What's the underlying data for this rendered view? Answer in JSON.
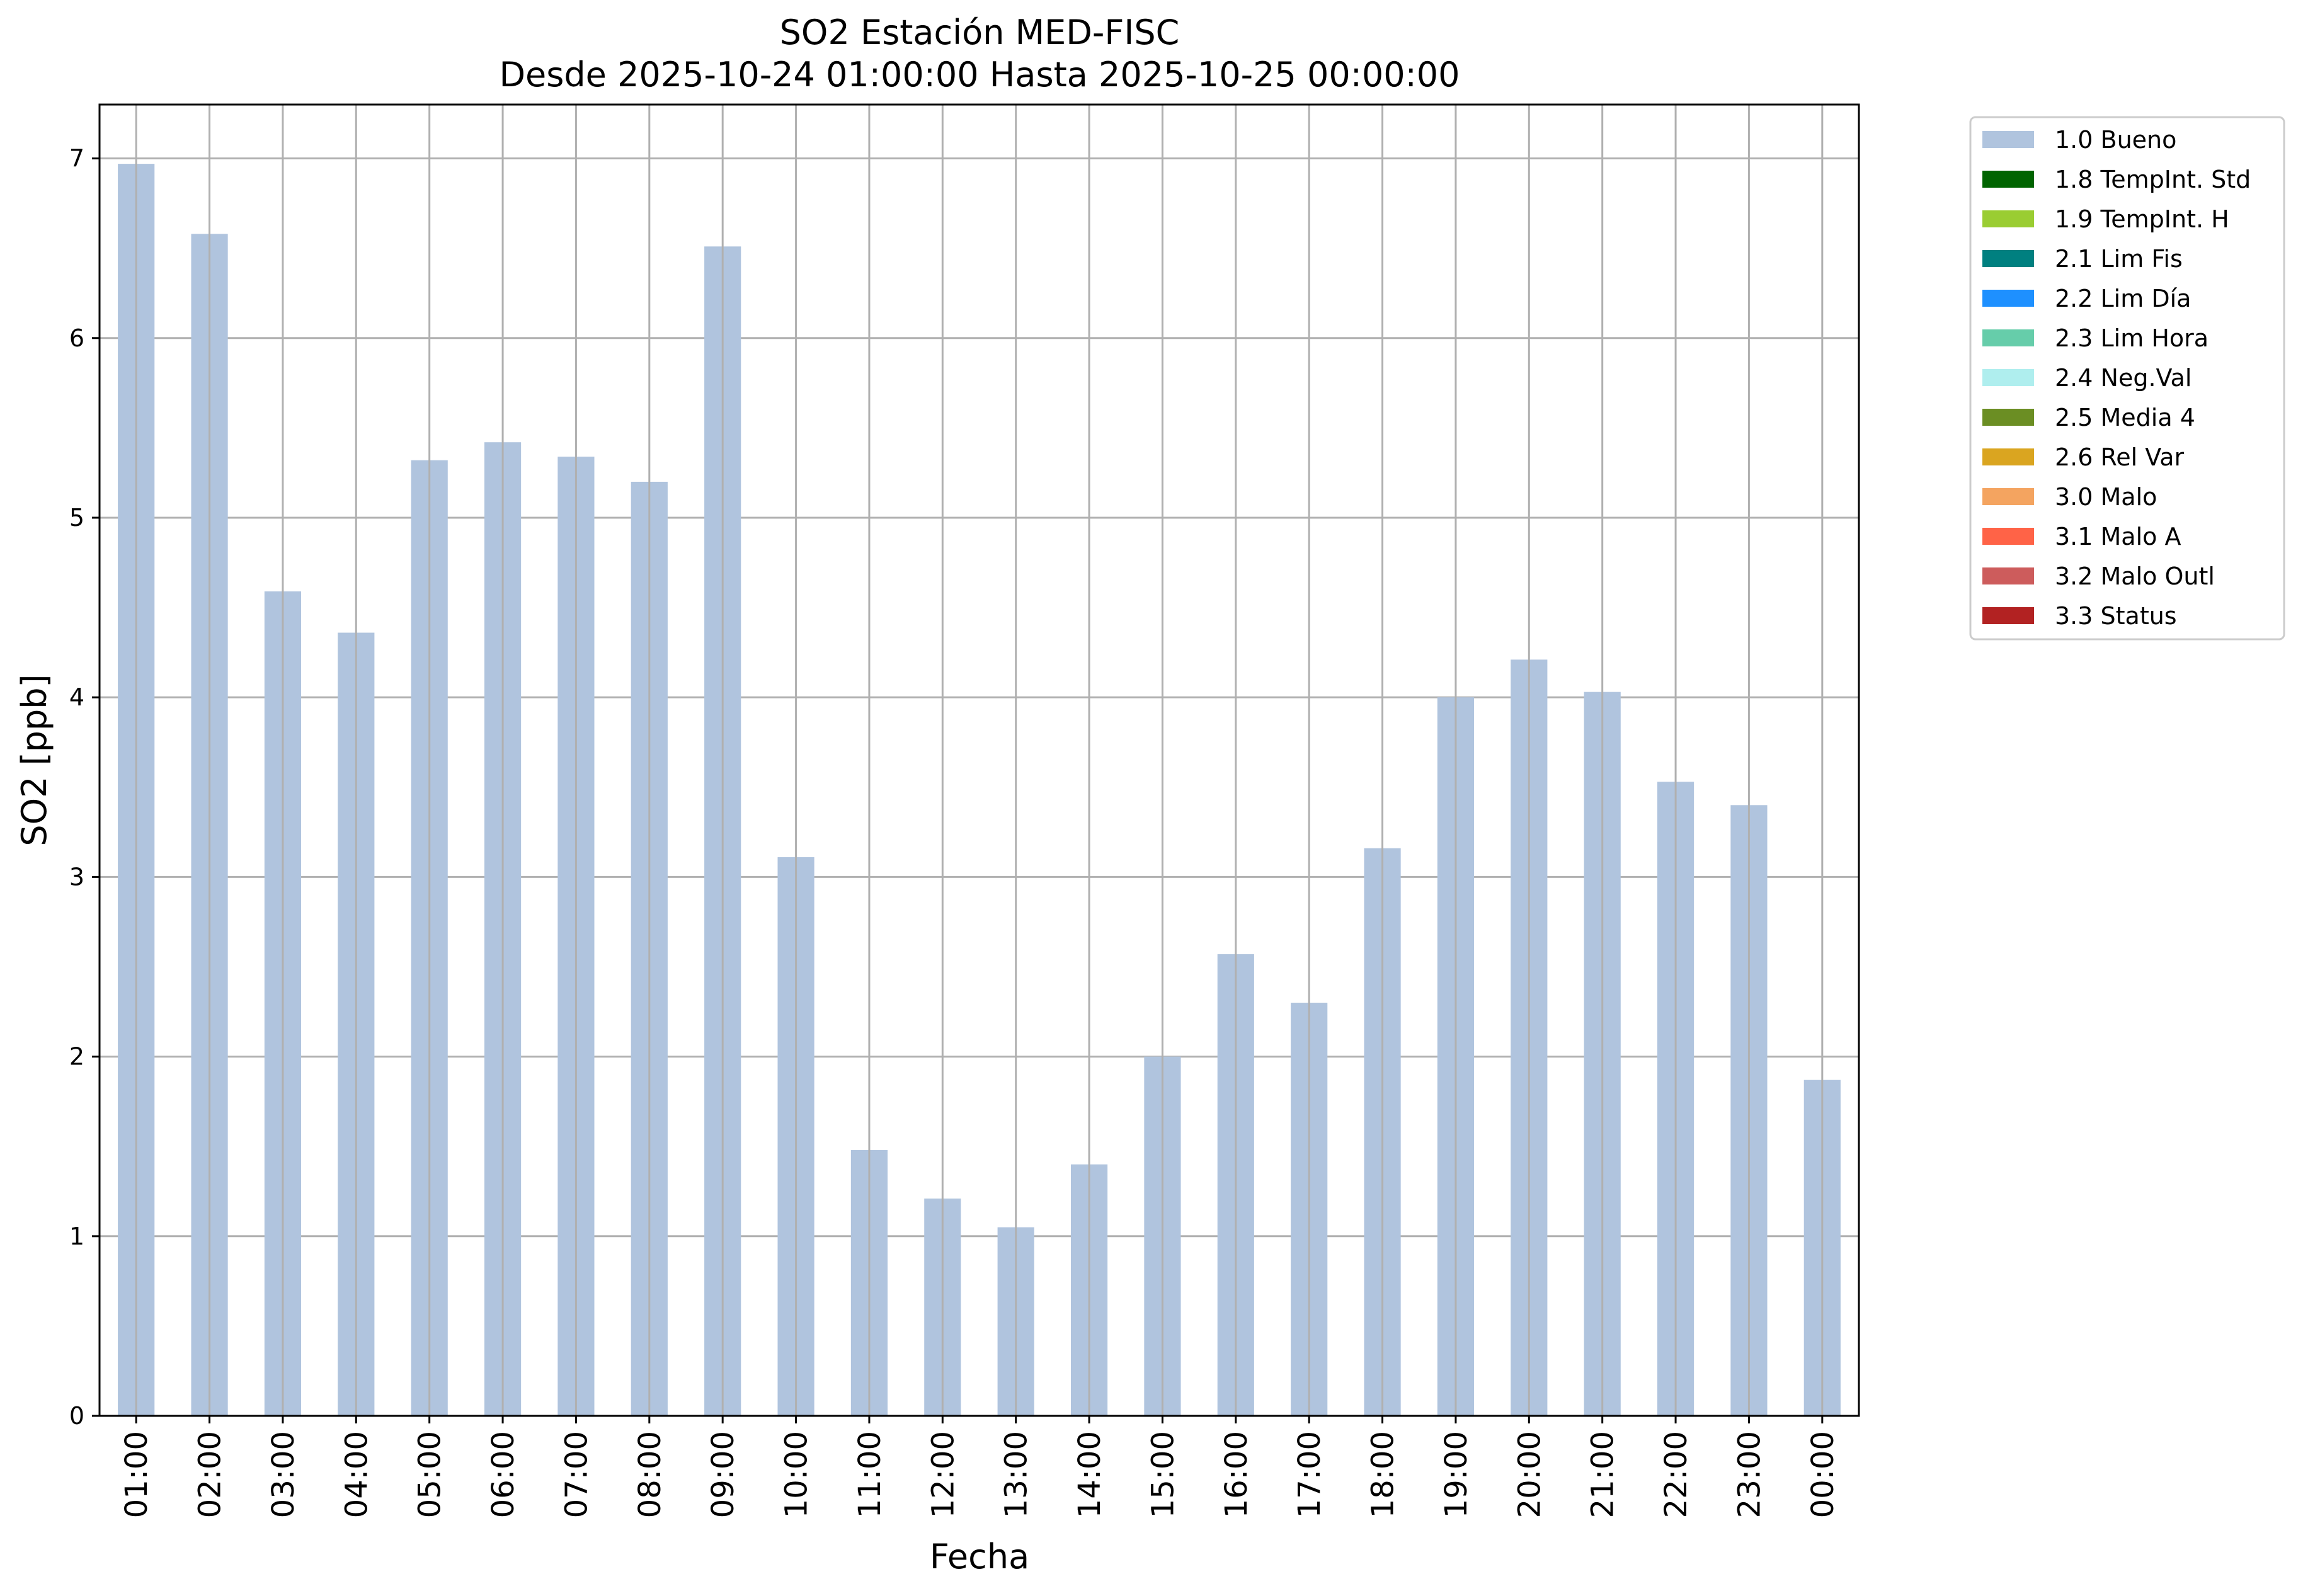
{
  "chart_data": {
    "type": "bar",
    "title": "SO2 Estación MED-FISC",
    "subtitle": "Desde 2025-10-24 01:00:00 Hasta 2025-10-25 00:00:00",
    "xlabel": "Fecha",
    "ylabel": "SO2 [ppb]",
    "ylim": [
      0,
      7.3
    ],
    "yticks": [
      0,
      1,
      2,
      3,
      4,
      5,
      6,
      7
    ],
    "grid": true,
    "legend_position": "outside-right",
    "categories": [
      "01:00",
      "02:00",
      "03:00",
      "04:00",
      "05:00",
      "06:00",
      "07:00",
      "08:00",
      "09:00",
      "10:00",
      "11:00",
      "12:00",
      "13:00",
      "14:00",
      "15:00",
      "16:00",
      "17:00",
      "18:00",
      "19:00",
      "20:00",
      "21:00",
      "22:00",
      "23:00",
      "00:00"
    ],
    "series": [
      {
        "name": "1.0 Bueno",
        "color": "#b0c4de",
        "values": [
          6.97,
          6.58,
          4.59,
          4.36,
          5.32,
          5.42,
          5.34,
          5.2,
          6.51,
          3.11,
          1.48,
          1.21,
          1.05,
          1.4,
          2.0,
          2.57,
          2.3,
          3.16,
          4.0,
          4.21,
          4.03,
          3.53,
          3.4,
          1.87
        ]
      }
    ],
    "legend": [
      {
        "label": "1.0 Bueno",
        "color": "#b0c4de"
      },
      {
        "label": "1.8 TempInt. Std",
        "color": "#006400"
      },
      {
        "label": "1.9 TempInt. H",
        "color": "#9acd32"
      },
      {
        "label": "2.1 Lim Fis",
        "color": "#008080"
      },
      {
        "label": "2.2 Lim Día",
        "color": "#1e90ff"
      },
      {
        "label": "2.3 Lim Hora",
        "color": "#66cdaa"
      },
      {
        "label": "2.4 Neg.Val",
        "color": "#afeeee"
      },
      {
        "label": "2.5 Media 4",
        "color": "#6b8e23"
      },
      {
        "label": "2.6 Rel Var",
        "color": "#daa520"
      },
      {
        "label": "3.0 Malo",
        "color": "#f4a460"
      },
      {
        "label": "3.1 Malo A",
        "color": "#ff6347"
      },
      {
        "label": "3.2 Malo Outl",
        "color": "#cd5c5c"
      },
      {
        "label": "3.3 Status",
        "color": "#b22222"
      }
    ]
  }
}
